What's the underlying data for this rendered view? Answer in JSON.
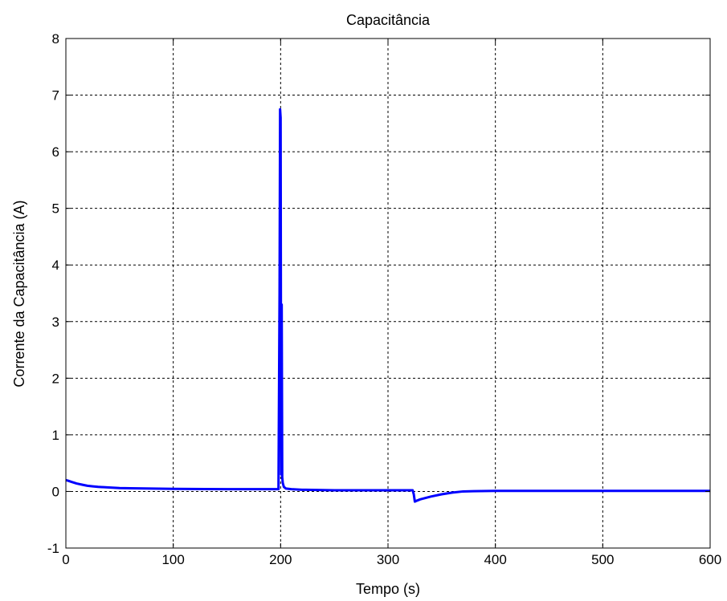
{
  "chart_data": {
    "type": "line",
    "title": "Capacitância",
    "xlabel": "Tempo (s)",
    "ylabel": "Corrente da Capacitância (A)",
    "xlim": [
      0,
      600
    ],
    "ylim": [
      -1,
      8
    ],
    "xticks": [
      0,
      100,
      200,
      300,
      400,
      500,
      600
    ],
    "yticks": [
      -1,
      0,
      1,
      2,
      3,
      4,
      5,
      6,
      7,
      8
    ],
    "grid": true,
    "line_color": "#0000ff",
    "series": [
      {
        "x": [
          0,
          2,
          5,
          10,
          15,
          20,
          25,
          30,
          40,
          50,
          60,
          80,
          100,
          150,
          198,
          199,
          199.5,
          200,
          200.5,
          201,
          201.5,
          202,
          203,
          205,
          210,
          220,
          250,
          300,
          323,
          324,
          325,
          326,
          330,
          340,
          350,
          360,
          370,
          380,
          400,
          500,
          600
        ],
        "y": [
          0.2,
          0.19,
          0.17,
          0.14,
          0.12,
          0.1,
          0.09,
          0.08,
          0.07,
          0.06,
          0.055,
          0.05,
          0.045,
          0.04,
          0.04,
          3.5,
          6.75,
          6.6,
          0.3,
          3.3,
          0.25,
          0.15,
          0.08,
          0.05,
          0.04,
          0.03,
          0.02,
          0.02,
          0.02,
          -0.05,
          -0.18,
          -0.17,
          -0.14,
          -0.09,
          -0.05,
          -0.02,
          0.0,
          0.005,
          0.01,
          0.01,
          0.01
        ]
      }
    ]
  }
}
